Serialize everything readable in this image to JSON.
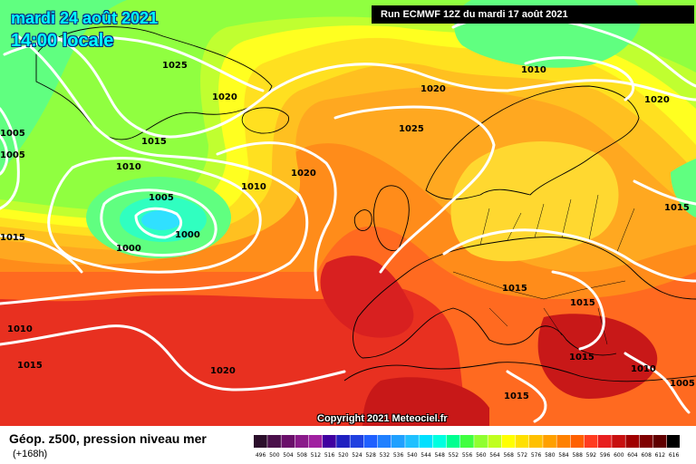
{
  "header": {
    "date_line": "mardi 24 août 2021",
    "time_line": "14:00 locale",
    "run_info": "Run ECMWF 12Z du mardi 17 août 2021"
  },
  "footer": {
    "field_title": "Géop. z500, pression niveau mer",
    "lead_time": "(+168h)",
    "copyright": "Copyright 2021 Meteociel.fr"
  },
  "legend": {
    "values": [
      "496",
      "500",
      "504",
      "508",
      "512",
      "516",
      "520",
      "524",
      "528",
      "532",
      "536",
      "540",
      "544",
      "548",
      "552",
      "556",
      "560",
      "564",
      "568",
      "572",
      "576",
      "580",
      "584",
      "588",
      "592",
      "596",
      "600",
      "604",
      "608",
      "612",
      "616"
    ],
    "colors": [
      "#2b0f2b",
      "#4a0f4a",
      "#6a0f6a",
      "#8a1a8a",
      "#a020a0",
      "#4000a0",
      "#2020c0",
      "#2040e0",
      "#2060ff",
      "#2080ff",
      "#20a0ff",
      "#20c0ff",
      "#00e0ff",
      "#00ffe0",
      "#00ff90",
      "#40ff40",
      "#90ff30",
      "#c0ff20",
      "#ffff00",
      "#ffe000",
      "#ffc000",
      "#ffa000",
      "#ff8000",
      "#ff6000",
      "#ff3c20",
      "#e82020",
      "#c81010",
      "#a00000",
      "#800000",
      "#600000",
      "#000000"
    ]
  },
  "pressure_labels": [
    {
      "text": "1025"
    },
    {
      "text": "1020"
    },
    {
      "text": "1015"
    },
    {
      "text": "1010"
    },
    {
      "text": "1005"
    },
    {
      "text": "1000"
    },
    {
      "text": "1000"
    },
    {
      "text": "1010"
    },
    {
      "text": "1020"
    },
    {
      "text": "1020"
    },
    {
      "text": "1010"
    },
    {
      "text": "1020"
    },
    {
      "text": "1025"
    },
    {
      "text": "1005"
    },
    {
      "text": "1005"
    },
    {
      "text": "1015"
    },
    {
      "text": "1010"
    },
    {
      "text": "1015"
    },
    {
      "text": "1020"
    },
    {
      "text": "1015"
    },
    {
      "text": "1015"
    },
    {
      "text": "1015"
    },
    {
      "text": "1010"
    },
    {
      "text": "1005"
    },
    {
      "text": "1015"
    }
  ]
}
